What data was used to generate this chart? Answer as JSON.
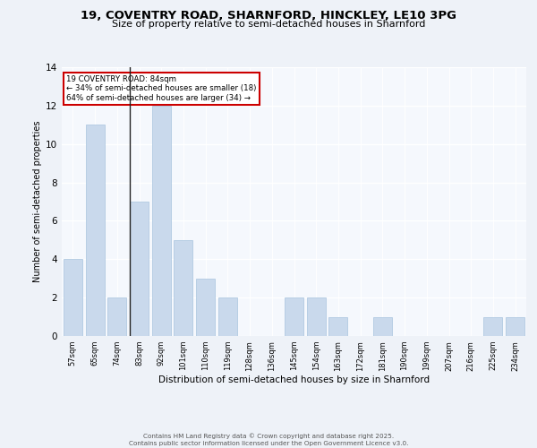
{
  "title_line1": "19, COVENTRY ROAD, SHARNFORD, HINCKLEY, LE10 3PG",
  "title_line2": "Size of property relative to semi-detached houses in Sharnford",
  "xlabel": "Distribution of semi-detached houses by size in Sharnford",
  "ylabel": "Number of semi-detached properties",
  "footnote": "Contains HM Land Registry data © Crown copyright and database right 2025.\nContains public sector information licensed under the Open Government Licence v3.0.",
  "categories": [
    "57sqm",
    "65sqm",
    "74sqm",
    "83sqm",
    "92sqm",
    "101sqm",
    "110sqm",
    "119sqm",
    "128sqm",
    "136sqm",
    "145sqm",
    "154sqm",
    "163sqm",
    "172sqm",
    "181sqm",
    "190sqm",
    "199sqm",
    "207sqm",
    "216sqm",
    "225sqm",
    "234sqm"
  ],
  "values": [
    4,
    11,
    2,
    7,
    12,
    5,
    3,
    2,
    0,
    0,
    2,
    2,
    1,
    0,
    1,
    0,
    0,
    0,
    0,
    1,
    1
  ],
  "bar_color": "#c9d9ec",
  "bar_edge_color": "#a8c4de",
  "subject_bar_index": 3,
  "pct_smaller": 34,
  "pct_smaller_n": 18,
  "pct_larger": 64,
  "pct_larger_n": 34,
  "annotation_box_color": "#cc0000",
  "ylim": [
    0,
    14
  ],
  "yticks": [
    0,
    2,
    4,
    6,
    8,
    10,
    12,
    14
  ],
  "bg_color": "#eef2f8",
  "plot_bg_color": "#f5f8fd"
}
